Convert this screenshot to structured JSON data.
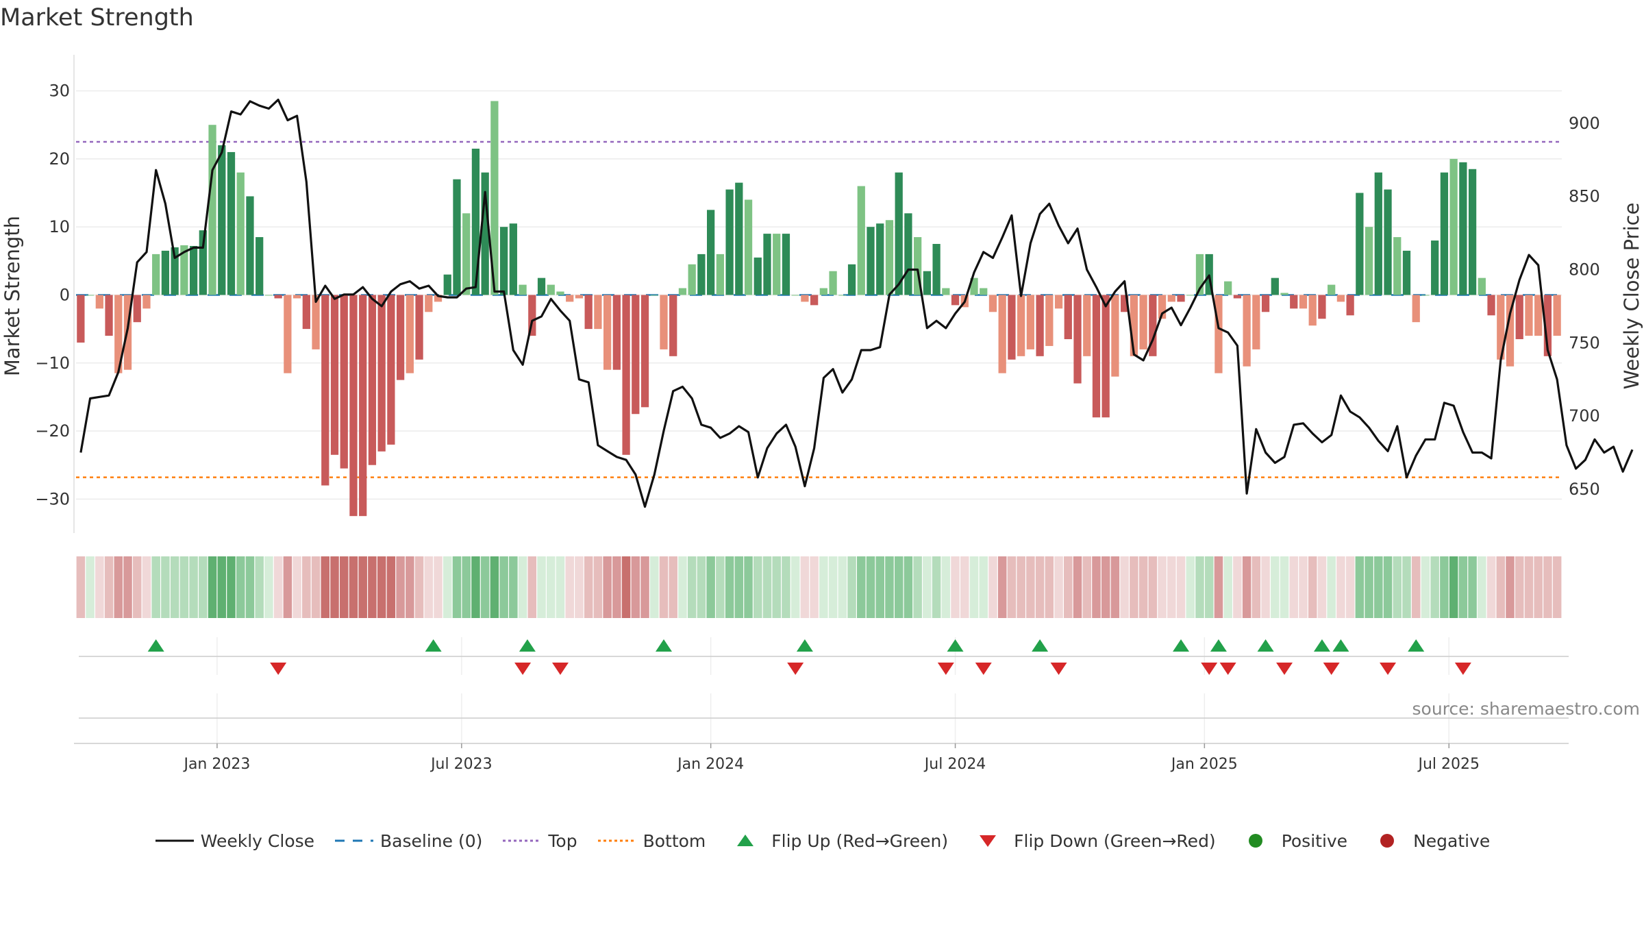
{
  "chart_data": {
    "type": "bar",
    "title": "Market Strength",
    "source": "source: sharemaestro.com",
    "ylabel_left": "Market Strength",
    "ylabel_right": "Weekly Close Price",
    "left_ylim": [
      -35,
      36
    ],
    "left_ticks": [
      30,
      20,
      10,
      0,
      -10,
      -20,
      -30
    ],
    "right_ylim": [
      620,
      950
    ],
    "right_ticks": [
      900,
      850,
      800,
      750,
      700,
      650
    ],
    "top_level": 22.5,
    "bottom_level": -26.8,
    "x_date_labels": [
      "Jan 2023",
      "Jul 2023",
      "Jan 2024",
      "Jul 2024",
      "Jan 2025",
      "Jul 2025"
    ],
    "x_date_label_weeks": [
      15,
      41,
      67.5,
      93.5,
      120,
      146
    ],
    "strength": [
      -7,
      0,
      -2,
      -6,
      -11.5,
      -11,
      -4,
      -2,
      6,
      6.5,
      7,
      7.3,
      7.2,
      9.5,
      25,
      22,
      21,
      18,
      14.5,
      8.5,
      0,
      -0.5,
      -11.5,
      -0.5,
      -5,
      -8,
      -28,
      -23.5,
      -25.5,
      -32.5,
      -32.5,
      -25,
      -23,
      -22,
      -12.5,
      -11.5,
      -9.5,
      -2.5,
      -1,
      3,
      17,
      12,
      21.5,
      18,
      28.5,
      10,
      10.5,
      1.5,
      -6,
      2.5,
      1.5,
      0.5,
      -1,
      -0.5,
      -5,
      -5,
      -11,
      -11,
      -23.5,
      -17.5,
      -16.5,
      0,
      -8,
      -9,
      1,
      4.5,
      6,
      12.5,
      6,
      15.5,
      16.5,
      14,
      5.5,
      9,
      9,
      9,
      0,
      -1,
      -1.5,
      1,
      3.5,
      0,
      4.5,
      16,
      10,
      10.5,
      11,
      18,
      12,
      8.5,
      3.5,
      7.5,
      1,
      -1.5,
      -1.8,
      2.5,
      1,
      -2.5,
      -11.5,
      -9.5,
      -9,
      -8,
      -9,
      -7.5,
      -2,
      -6.5,
      -13,
      -9,
      -18,
      -18,
      -12,
      -2.5,
      -9,
      -8,
      -9,
      -3.5,
      -1,
      -1,
      0,
      6,
      6,
      -11.5,
      2,
      -0.5,
      -10.5,
      -8,
      -2.5,
      2.5,
      0.3,
      -2,
      -2,
      -4.5,
      -3.5,
      1.5,
      -1,
      -3,
      15,
      10,
      18,
      15.5,
      8.5,
      6.5,
      -4,
      0,
      8,
      18,
      20,
      19.5,
      18.5,
      2.5,
      -3,
      -9.5,
      -10.5,
      -6.5,
      -6,
      -6,
      -9,
      -6
    ],
    "weekly_close": [
      675,
      712,
      713,
      714,
      730,
      760,
      805,
      812,
      868,
      845,
      808,
      812,
      815,
      815,
      868,
      880,
      908,
      906,
      915,
      912,
      910,
      916,
      902,
      905,
      860,
      778,
      789,
      780,
      783,
      783,
      788,
      780,
      775,
      785,
      790,
      792,
      787,
      789,
      782,
      781,
      781,
      787,
      788,
      853,
      785,
      785,
      745,
      735,
      765,
      768,
      780,
      772,
      765,
      725,
      723,
      680,
      676,
      672,
      670,
      660,
      638,
      660,
      690,
      717,
      720,
      712,
      694,
      692,
      685,
      688,
      693,
      689,
      658,
      678,
      688,
      694,
      679,
      652,
      678,
      726,
      732,
      716,
      725,
      745,
      745,
      747,
      783,
      790,
      800,
      800,
      760,
      765,
      760,
      770,
      778,
      798,
      812,
      808,
      822,
      837,
      782,
      818,
      838,
      845,
      830,
      818,
      828,
      800,
      788,
      775,
      785,
      792,
      742,
      738,
      752,
      770,
      774,
      762,
      774,
      787,
      796,
      760,
      757,
      748,
      647,
      691,
      675,
      668,
      672,
      694,
      695,
      688,
      682,
      687,
      714,
      703,
      699,
      692,
      683,
      676,
      693,
      658,
      673,
      684,
      684,
      709,
      707,
      689,
      675,
      675,
      671,
      738,
      770,
      793,
      810,
      803,
      745,
      725,
      680,
      664,
      670,
      684,
      675,
      679,
      662,
      677
    ]
  },
  "heat_colors": {
    "pos": [
      "#d6edd9",
      "#b4dcbb",
      "#8cc99a",
      "#5fb071"
    ],
    "neg": [
      "#f0d8d8",
      "#e6bdbc",
      "#d8999a",
      "#c8706e"
    ]
  },
  "flips": {
    "up_weeks": [
      8.5,
      38,
      48,
      62.5,
      77.5,
      93.5,
      102.5,
      117.5,
      121.5,
      126.5,
      132.5,
      134.5,
      142.5
    ],
    "down_weeks": [
      21.5,
      47.5,
      51.5,
      76.5,
      92.5,
      96.5,
      104.5,
      120.5,
      122.5,
      128.5,
      133.5,
      139.5,
      147.5
    ]
  },
  "colors": {
    "pos_dark": "#2e8b57",
    "pos_light": "#7ec384",
    "neg_dark": "#c85a5a",
    "neg_light": "#e8907a",
    "close_line": "#111111",
    "baseline": "#1f77b4",
    "top_line": "#9467bd",
    "bottom_line": "#ff7f0e",
    "flip_up": "#22a14a",
    "flip_down": "#d62728",
    "positive_dot": "#228b22",
    "negative_dot": "#b22222"
  },
  "legend": {
    "items": [
      {
        "label": "Weekly Close",
        "symbol": "line",
        "color": "#111111"
      },
      {
        "label": "Baseline (0)",
        "symbol": "dash",
        "color": "#1f77b4"
      },
      {
        "label": "Top",
        "symbol": "dot",
        "color": "#9467bd"
      },
      {
        "label": "Bottom",
        "symbol": "dot",
        "color": "#ff7f0e"
      },
      {
        "label": "Flip Up (Red→Green)",
        "symbol": "tri-up",
        "color": "#22a14a"
      },
      {
        "label": "Flip Down (Green→Red)",
        "symbol": "tri-down",
        "color": "#d62728"
      },
      {
        "label": "Positive",
        "symbol": "circle",
        "color": "#228b22"
      },
      {
        "label": "Negative",
        "symbol": "circle",
        "color": "#b22222"
      }
    ]
  }
}
